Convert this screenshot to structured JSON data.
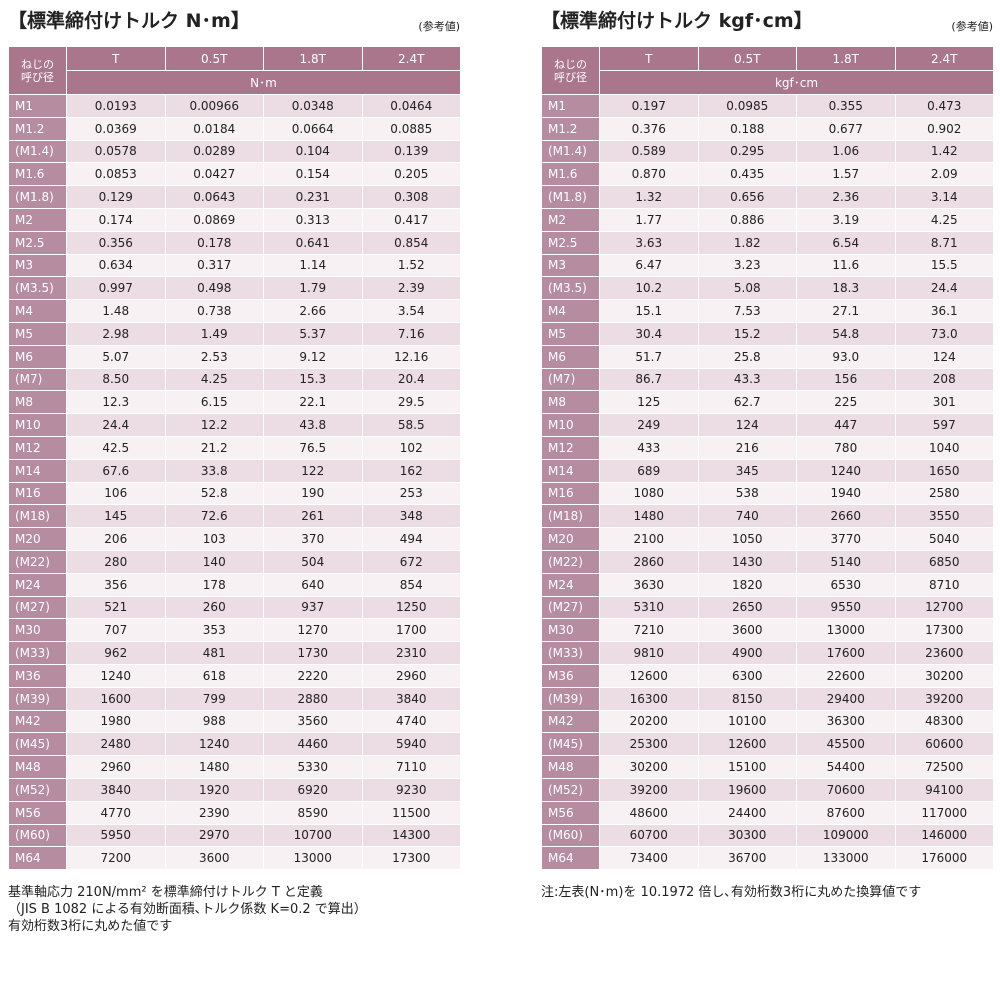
{
  "tables": [
    {
      "title": "【標準締付けトルク N･m】",
      "note": "(参考値)",
      "header": {
        "size": [
          "ねじの",
          "呼び径"
        ],
        "cols": [
          "T",
          "0.5T",
          "1.8T",
          "2.4T"
        ],
        "unit": "N･m"
      },
      "rows": [
        [
          "M1",
          "0.0193",
          "0.00966",
          "0.0348",
          "0.0464"
        ],
        [
          "M1.2",
          "0.0369",
          "0.0184",
          "0.0664",
          "0.0885"
        ],
        [
          "(M1.4)",
          "0.0578",
          "0.0289",
          "0.104",
          "0.139"
        ],
        [
          "M1.6",
          "0.0853",
          "0.0427",
          "0.154",
          "0.205"
        ],
        [
          "(M1.8)",
          "0.129",
          "0.0643",
          "0.231",
          "0.308"
        ],
        [
          "M2",
          "0.174",
          "0.0869",
          "0.313",
          "0.417"
        ],
        [
          "M2.5",
          "0.356",
          "0.178",
          "0.641",
          "0.854"
        ],
        [
          "M3",
          "0.634",
          "0.317",
          "1.14",
          "1.52"
        ],
        [
          "(M3.5)",
          "0.997",
          "0.498",
          "1.79",
          "2.39"
        ],
        [
          "M4",
          "1.48",
          "0.738",
          "2.66",
          "3.54"
        ],
        [
          "M5",
          "2.98",
          "1.49",
          "5.37",
          "7.16"
        ],
        [
          "M6",
          "5.07",
          "2.53",
          "9.12",
          "12.16"
        ],
        [
          "(M7)",
          "8.50",
          "4.25",
          "15.3",
          "20.4"
        ],
        [
          "M8",
          "12.3",
          "6.15",
          "22.1",
          "29.5"
        ],
        [
          "M10",
          "24.4",
          "12.2",
          "43.8",
          "58.5"
        ],
        [
          "M12",
          "42.5",
          "21.2",
          "76.5",
          "102"
        ],
        [
          "M14",
          "67.6",
          "33.8",
          "122",
          "162"
        ],
        [
          "M16",
          "106",
          "52.8",
          "190",
          "253"
        ],
        [
          "(M18)",
          "145",
          "72.6",
          "261",
          "348"
        ],
        [
          "M20",
          "206",
          "103",
          "370",
          "494"
        ],
        [
          "(M22)",
          "280",
          "140",
          "504",
          "672"
        ],
        [
          "M24",
          "356",
          "178",
          "640",
          "854"
        ],
        [
          "(M27)",
          "521",
          "260",
          "937",
          "1250"
        ],
        [
          "M30",
          "707",
          "353",
          "1270",
          "1700"
        ],
        [
          "(M33)",
          "962",
          "481",
          "1730",
          "2310"
        ],
        [
          "M36",
          "1240",
          "618",
          "2220",
          "2960"
        ],
        [
          "(M39)",
          "1600",
          "799",
          "2880",
          "3840"
        ],
        [
          "M42",
          "1980",
          "988",
          "3560",
          "4740"
        ],
        [
          "(M45)",
          "2480",
          "1240",
          "4460",
          "5940"
        ],
        [
          "M48",
          "2960",
          "1480",
          "5330",
          "7110"
        ],
        [
          "(M52)",
          "3840",
          "1920",
          "6920",
          "9230"
        ],
        [
          "M56",
          "4770",
          "2390",
          "8590",
          "11500"
        ],
        [
          "(M60)",
          "5950",
          "2970",
          "10700",
          "14300"
        ],
        [
          "M64",
          "7200",
          "3600",
          "13000",
          "17300"
        ]
      ],
      "footnote": [
        "基準軸応力 210N/mm² を標準締付けトルク T と定義",
        "（JIS B 1082 による有効断面積､トルク係数 K=0.2 で算出）",
        "有効桁数3桁に丸めた値です"
      ]
    },
    {
      "title": "【標準締付けトルク kgf･cm】",
      "note": "(参考値)",
      "header": {
        "size": [
          "ねじの",
          "呼び径"
        ],
        "cols": [
          "T",
          "0.5T",
          "1.8T",
          "2.4T"
        ],
        "unit": "kgf･cm"
      },
      "rows": [
        [
          "M1",
          "0.197",
          "0.0985",
          "0.355",
          "0.473"
        ],
        [
          "M1.2",
          "0.376",
          "0.188",
          "0.677",
          "0.902"
        ],
        [
          "(M1.4)",
          "0.589",
          "0.295",
          "1.06",
          "1.42"
        ],
        [
          "M1.6",
          "0.870",
          "0.435",
          "1.57",
          "2.09"
        ],
        [
          "(M1.8)",
          "1.32",
          "0.656",
          "2.36",
          "3.14"
        ],
        [
          "M2",
          "1.77",
          "0.886",
          "3.19",
          "4.25"
        ],
        [
          "M2.5",
          "3.63",
          "1.82",
          "6.54",
          "8.71"
        ],
        [
          "M3",
          "6.47",
          "3.23",
          "11.6",
          "15.5"
        ],
        [
          "(M3.5)",
          "10.2",
          "5.08",
          "18.3",
          "24.4"
        ],
        [
          "M4",
          "15.1",
          "7.53",
          "27.1",
          "36.1"
        ],
        [
          "M5",
          "30.4",
          "15.2",
          "54.8",
          "73.0"
        ],
        [
          "M6",
          "51.7",
          "25.8",
          "93.0",
          "124"
        ],
        [
          "(M7)",
          "86.7",
          "43.3",
          "156",
          "208"
        ],
        [
          "M8",
          "125",
          "62.7",
          "225",
          "301"
        ],
        [
          "M10",
          "249",
          "124",
          "447",
          "597"
        ],
        [
          "M12",
          "433",
          "216",
          "780",
          "1040"
        ],
        [
          "M14",
          "689",
          "345",
          "1240",
          "1650"
        ],
        [
          "M16",
          "1080",
          "538",
          "1940",
          "2580"
        ],
        [
          "(M18)",
          "1480",
          "740",
          "2660",
          "3550"
        ],
        [
          "M20",
          "2100",
          "1050",
          "3770",
          "5040"
        ],
        [
          "(M22)",
          "2860",
          "1430",
          "5140",
          "6850"
        ],
        [
          "M24",
          "3630",
          "1820",
          "6530",
          "8710"
        ],
        [
          "(M27)",
          "5310",
          "2650",
          "9550",
          "12700"
        ],
        [
          "M30",
          "7210",
          "3600",
          "13000",
          "17300"
        ],
        [
          "(M33)",
          "9810",
          "4900",
          "17600",
          "23600"
        ],
        [
          "M36",
          "12600",
          "6300",
          "22600",
          "30200"
        ],
        [
          "(M39)",
          "16300",
          "8150",
          "29400",
          "39200"
        ],
        [
          "M42",
          "20200",
          "10100",
          "36300",
          "48300"
        ],
        [
          "(M45)",
          "25300",
          "12600",
          "45500",
          "60600"
        ],
        [
          "M48",
          "30200",
          "15100",
          "54400",
          "72500"
        ],
        [
          "(M52)",
          "39200",
          "19600",
          "70600",
          "94100"
        ],
        [
          "M56",
          "48600",
          "24400",
          "87600",
          "117000"
        ],
        [
          "(M60)",
          "60700",
          "30300",
          "109000",
          "146000"
        ],
        [
          "M64",
          "73400",
          "36700",
          "133000",
          "176000"
        ]
      ],
      "footnote": [
        "注:左表(N･m)を 10.1972 倍し､有効桁数3桁に丸めた換算値です"
      ]
    }
  ]
}
